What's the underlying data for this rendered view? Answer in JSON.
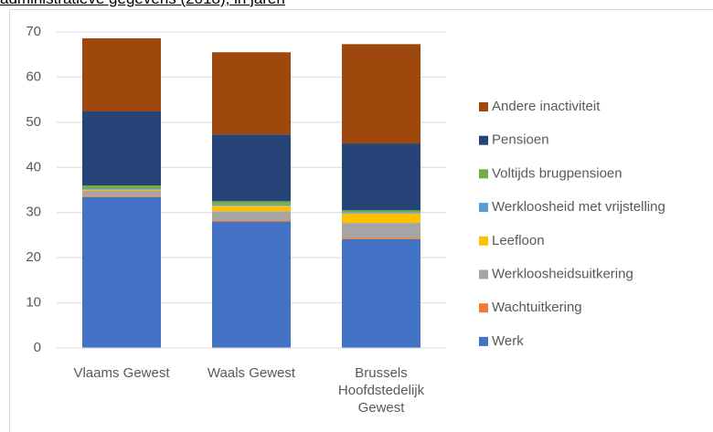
{
  "chart_data": {
    "type": "stacked-bar",
    "title": "administratieve gegevens (2018), in jaren",
    "categories": [
      "Vlaams Gewest",
      "Waals Gewest",
      "Brussels Hoofdstedelijk Gewest"
    ],
    "series": [
      {
        "name": "Werk",
        "color": "#4472c4",
        "values": [
          33.4,
          28.0,
          24.1
        ]
      },
      {
        "name": "Wachtuitkering",
        "color": "#ed7d31",
        "values": [
          0.2,
          0.3,
          0.3
        ]
      },
      {
        "name": "Werkloosheidsuitkering",
        "color": "#a5a5a5",
        "values": [
          1.2,
          2.0,
          3.3
        ]
      },
      {
        "name": "Leefloon",
        "color": "#ffc000",
        "values": [
          0.3,
          1.2,
          2.1
        ]
      },
      {
        "name": "Werkloosheid met vrijstelling",
        "color": "#5b9bd5",
        "values": [
          0.3,
          0.3,
          0.3
        ]
      },
      {
        "name": "Voltijds brugpensioen",
        "color": "#70ad47",
        "values": [
          0.6,
          0.7,
          0.4
        ]
      },
      {
        "name": "Pensioen",
        "color": "#264478",
        "values": [
          16.4,
          14.8,
          14.8
        ]
      },
      {
        "name": "Andere inactiviteit",
        "color": "#9e480e",
        "values": [
          16.2,
          18.2,
          22.0
        ]
      }
    ],
    "ylim": [
      0,
      70
    ],
    "yticks": [
      0,
      10,
      20,
      30,
      40,
      50,
      60,
      70
    ],
    "grid": true,
    "legend": "right"
  }
}
